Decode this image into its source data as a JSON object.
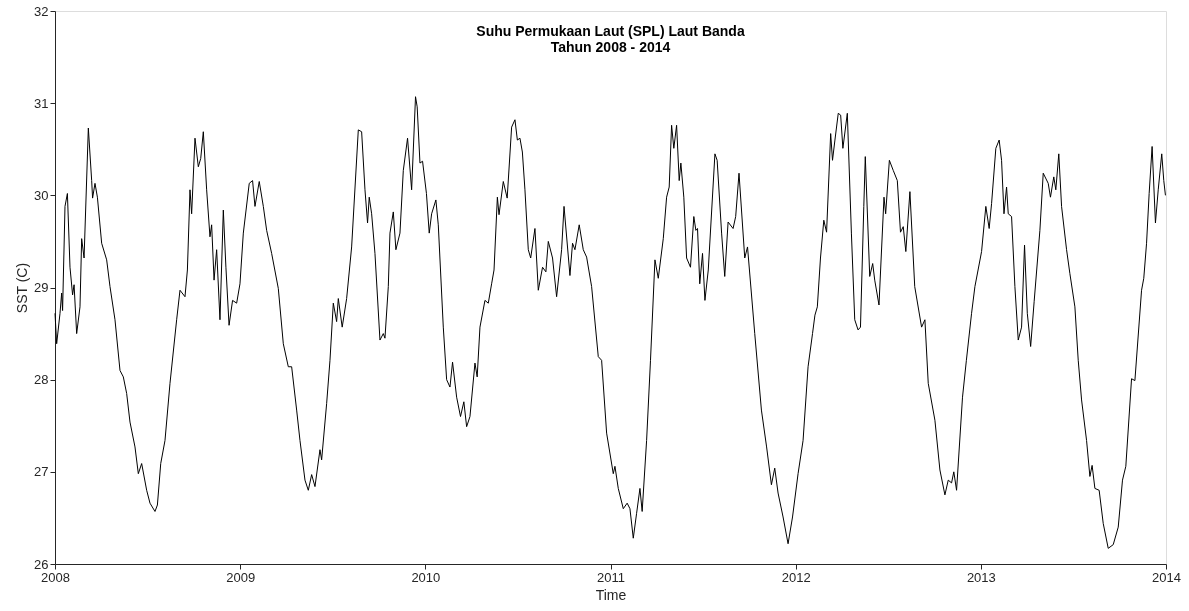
{
  "chart_data": {
    "type": "line",
    "title": "Suhu Permukaan Laut (SPL) Laut Banda",
    "subtitle": "Tahun 2008 - 2014",
    "xlabel": "Time",
    "ylabel": "SST (C)",
    "xlim": [
      2008,
      2014
    ],
    "xticks": [
      2008,
      2009,
      2010,
      2011,
      2012,
      2013,
      2014
    ],
    "ylim": [
      26,
      32
    ],
    "yticks": [
      26,
      27,
      28,
      29,
      30,
      31,
      32
    ],
    "grid": false,
    "marker": "none",
    "line_style": "solid",
    "series": [
      {
        "color": "#000000",
        "x": [
          2008.0,
          2008.009,
          2008.027,
          2008.036,
          2008.041,
          2008.054,
          2008.067,
          2008.081,
          2008.095,
          2008.103,
          2008.117,
          2008.135,
          2008.144,
          2008.157,
          2008.18,
          2008.198,
          2008.203,
          2008.216,
          2008.229,
          2008.252,
          2008.279,
          2008.297,
          2008.324,
          2008.351,
          2008.369,
          2008.387,
          2008.405,
          2008.432,
          2008.45,
          2008.468,
          2008.495,
          2008.513,
          2008.54,
          2008.553,
          2008.571,
          2008.594,
          2008.621,
          2008.657,
          2008.675,
          2008.702,
          2008.715,
          2008.729,
          2008.738,
          2008.756,
          2008.774,
          2008.787,
          2008.801,
          2008.819,
          2008.837,
          2008.846,
          2008.859,
          2008.873,
          2008.891,
          2008.909,
          2008.923,
          2008.94,
          2008.959,
          2008.981,
          2008.999,
          2009.017,
          2009.049,
          2009.067,
          2009.08,
          2009.103,
          2009.125,
          2009.143,
          2009.17,
          2009.206,
          2009.233,
          2009.26,
          2009.278,
          2009.305,
          2009.323,
          2009.35,
          2009.368,
          2009.386,
          2009.404,
          2009.431,
          2009.44,
          2009.467,
          2009.485,
          2009.503,
          2009.521,
          2009.53,
          2009.551,
          2009.575,
          2009.602,
          2009.638,
          2009.656,
          2009.674,
          2009.688,
          2009.697,
          2009.71,
          2009.728,
          2009.755,
          2009.773,
          2009.782,
          2009.8,
          2009.809,
          2009.827,
          2009.841,
          2009.863,
          2009.881,
          2009.904,
          2009.926,
          2009.947,
          2009.956,
          2009.971,
          2009.985,
          2010.006,
          2010.021,
          2010.034,
          2010.057,
          2010.07,
          2010.097,
          2010.115,
          2010.133,
          2010.147,
          2010.169,
          2010.19,
          2010.208,
          2010.223,
          2010.241,
          2010.268,
          2010.28,
          2010.295,
          2010.322,
          2010.34,
          2010.358,
          2010.371,
          2010.389,
          2010.398,
          2010.421,
          2010.442,
          2010.466,
          2010.484,
          2010.497,
          2010.511,
          2010.524,
          2010.538,
          2010.556,
          2010.569,
          2010.592,
          2010.61,
          2010.633,
          2010.651,
          2010.664,
          2010.687,
          2010.709,
          2010.736,
          2010.749,
          2010.781,
          2010.795,
          2010.808,
          2010.831,
          2010.853,
          2010.871,
          2010.898,
          2010.934,
          2010.952,
          2010.979,
          2011.015,
          2011.024,
          2011.042,
          2011.069,
          2011.09,
          2011.105,
          2011.123,
          2011.141,
          2011.159,
          2011.171,
          2011.195,
          2011.216,
          2011.24,
          2011.258,
          2011.285,
          2011.303,
          2011.317,
          2011.33,
          2011.342,
          2011.357,
          2011.371,
          2011.38,
          2011.396,
          2011.411,
          2011.432,
          2011.45,
          2011.461,
          2011.47,
          2011.482,
          2011.497,
          2011.51,
          2011.528,
          2011.564,
          2011.576,
          2011.6,
          2011.617,
          2011.635,
          2011.662,
          2011.676,
          2011.694,
          2011.725,
          2011.74,
          2011.779,
          2011.815,
          2011.843,
          2011.869,
          2011.887,
          2011.905,
          2011.932,
          2011.959,
          2011.983,
          2012.013,
          2012.04,
          2012.067,
          2012.091,
          2012.104,
          2012.117,
          2012.134,
          2012.152,
          2012.167,
          2012.189,
          2012.199,
          2012.212,
          2012.23,
          2012.243,
          2012.255,
          2012.279,
          2012.301,
          2012.319,
          2012.337,
          2012.35,
          2012.368,
          2012.376,
          2012.4,
          2012.416,
          2012.427,
          2012.45,
          2012.477,
          2012.486,
          2012.506,
          2012.527,
          2012.549,
          2012.566,
          2012.581,
          2012.595,
          2012.617,
          2012.643,
          2012.68,
          2012.698,
          2012.716,
          2012.752,
          2012.779,
          2012.806,
          2012.824,
          2012.842,
          2012.854,
          2012.869,
          2012.901,
          2012.922,
          2012.95,
          2012.968,
          2013.004,
          2013.027,
          2013.045,
          2013.058,
          2013.081,
          2013.099,
          2013.112,
          2013.125,
          2013.139,
          2013.148,
          2013.166,
          2013.184,
          2013.202,
          2013.22,
          2013.236,
          2013.251,
          2013.269,
          2013.288,
          2013.319,
          2013.337,
          2013.364,
          2013.376,
          2013.394,
          2013.405,
          2013.421,
          2013.436,
          2013.463,
          2013.481,
          2013.508,
          2013.526,
          2013.544,
          2013.571,
          2013.589,
          2013.601,
          2013.616,
          2013.639,
          2013.661,
          2013.688,
          2013.715,
          2013.742,
          2013.765,
          2013.783,
          2013.814,
          2013.832,
          2013.868,
          2013.88,
          2013.895,
          2013.909,
          2013.925,
          2013.943,
          2013.958,
          2013.977,
          2013.988,
          2013.997
        ],
        "values": [
          28.72,
          28.39,
          28.72,
          28.94,
          28.75,
          29.88,
          30.02,
          29.22,
          28.92,
          29.03,
          28.5,
          28.79,
          29.53,
          29.32,
          30.73,
          30.16,
          29.97,
          30.13,
          29.98,
          29.48,
          29.3,
          29.01,
          28.65,
          28.1,
          28.03,
          27.85,
          27.54,
          27.27,
          26.98,
          27.09,
          26.8,
          26.66,
          26.57,
          26.64,
          27.09,
          27.34,
          27.96,
          28.65,
          28.97,
          28.9,
          29.19,
          30.06,
          29.8,
          30.62,
          30.31,
          30.4,
          30.69,
          30.06,
          29.55,
          29.68,
          29.08,
          29.41,
          28.65,
          29.84,
          29.22,
          28.59,
          28.86,
          28.83,
          29.04,
          29.59,
          30.13,
          30.16,
          29.88,
          30.15,
          29.88,
          29.62,
          29.37,
          28.99,
          28.39,
          28.14,
          28.14,
          27.67,
          27.34,
          26.91,
          26.8,
          26.97,
          26.84,
          27.24,
          27.13,
          27.74,
          28.21,
          28.83,
          28.63,
          28.88,
          28.57,
          28.88,
          29.44,
          30.71,
          30.69,
          30.06,
          29.7,
          29.98,
          29.8,
          29.37,
          28.43,
          28.5,
          28.45,
          29.01,
          29.59,
          29.82,
          29.41,
          29.59,
          30.27,
          30.62,
          30.06,
          31.07,
          30.96,
          30.35,
          30.37,
          30.02,
          29.59,
          29.8,
          29.95,
          29.68,
          28.57,
          28.0,
          27.92,
          28.19,
          27.81,
          27.6,
          27.76,
          27.49,
          27.6,
          28.18,
          28.03,
          28.57,
          28.86,
          28.83,
          29.04,
          29.19,
          29.98,
          29.79,
          30.15,
          29.97,
          30.74,
          30.82,
          30.6,
          30.62,
          30.47,
          30.06,
          29.41,
          29.32,
          29.64,
          28.97,
          29.22,
          29.17,
          29.5,
          29.32,
          28.9,
          29.41,
          29.88,
          29.13,
          29.48,
          29.41,
          29.68,
          29.41,
          29.33,
          29.01,
          28.25,
          28.21,
          27.42,
          26.98,
          27.06,
          26.82,
          26.6,
          26.66,
          26.6,
          26.28,
          26.55,
          26.82,
          26.57,
          27.34,
          28.21,
          29.3,
          29.1,
          29.53,
          29.98,
          30.09,
          30.76,
          30.51,
          30.76,
          30.16,
          30.35,
          29.98,
          29.32,
          29.22,
          29.77,
          29.62,
          29.64,
          29.04,
          29.37,
          28.86,
          29.19,
          30.45,
          30.38,
          29.59,
          29.12,
          29.71,
          29.64,
          29.77,
          30.24,
          29.32,
          29.44,
          28.5,
          27.67,
          27.27,
          26.86,
          27.04,
          26.77,
          26.51,
          26.22,
          26.51,
          26.98,
          27.34,
          28.14,
          28.5,
          28.7,
          28.79,
          29.32,
          29.73,
          29.6,
          30.67,
          30.38,
          30.6,
          30.89,
          30.87,
          30.51,
          30.89,
          29.59,
          28.65,
          28.54,
          28.57,
          29.88,
          30.42,
          29.12,
          29.26,
          29.08,
          28.81,
          29.98,
          29.8,
          30.38,
          30.27,
          30.16,
          29.6,
          29.66,
          29.39,
          30.04,
          29.01,
          28.57,
          28.65,
          27.96,
          27.56,
          27.02,
          26.75,
          26.91,
          26.88,
          27.0,
          26.8,
          27.81,
          28.21,
          28.72,
          29.01,
          29.39,
          29.88,
          29.64,
          29.91,
          30.51,
          30.6,
          30.38,
          29.8,
          30.09,
          29.8,
          29.77,
          29.01,
          28.43,
          28.57,
          29.46,
          28.72,
          28.36,
          28.85,
          29.62,
          30.24,
          30.13,
          29.98,
          30.2,
          30.06,
          30.45,
          29.88,
          29.41,
          29.15,
          28.79,
          28.21,
          27.78,
          27.34,
          26.95,
          27.07,
          26.82,
          26.8,
          26.44,
          26.17,
          26.21,
          26.4,
          26.91,
          27.06,
          28.01,
          27.99,
          28.97,
          29.1,
          29.48,
          30.02,
          30.53,
          29.7,
          30.06,
          30.45,
          30.16,
          30.0
        ]
      }
    ]
  }
}
